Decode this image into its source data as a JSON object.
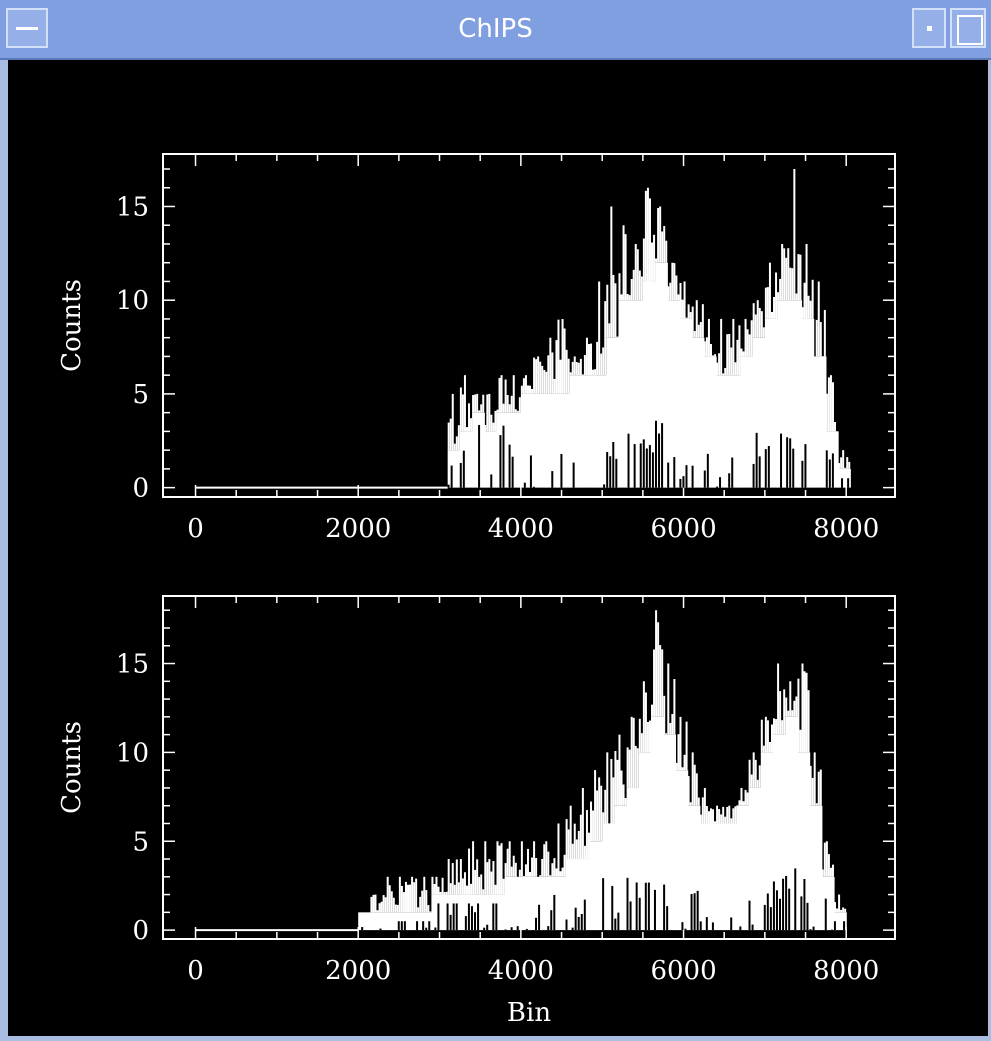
{
  "window": {
    "title": "ChIPS",
    "menu_icon": "window-menu-icon",
    "minimize_icon": "minimize-icon",
    "maximize_icon": "maximize-icon"
  },
  "colors": {
    "background": "#000000",
    "foreground": "#ffffff",
    "titlebar": "#7f9fe0"
  },
  "chart_data": [
    {
      "type": "bar",
      "xlabel": "",
      "ylabel": "Counts",
      "xlim": [
        -400,
        8600
      ],
      "ylim": [
        -0.5,
        17.8
      ],
      "xticks": [
        "0",
        "2000",
        "4000",
        "6000",
        "8000"
      ],
      "yticks": [
        "0",
        "5",
        "10",
        "15"
      ],
      "grid": false,
      "zero_range": [
        0,
        3100
      ],
      "x": [
        3100,
        3250,
        3400,
        3550,
        3700,
        3850,
        4000,
        4150,
        4300,
        4450,
        4600,
        4750,
        4900,
        5050,
        5200,
        5350,
        5500,
        5650,
        5800,
        5950,
        6100,
        6250,
        6400,
        6550,
        6700,
        6850,
        7000,
        7150,
        7300,
        7450,
        7600,
        7750,
        7900,
        8050
      ],
      "min": [
        0,
        1,
        2,
        0,
        2,
        1,
        0,
        0,
        0,
        0,
        1,
        0,
        0,
        1,
        2,
        1,
        1,
        2,
        1,
        0,
        1,
        0,
        0,
        0,
        0,
        1,
        1,
        2,
        1,
        1,
        0,
        0,
        0,
        0
      ],
      "mid": [
        2,
        3,
        4,
        3,
        4,
        4,
        5,
        5,
        5,
        5,
        6,
        6,
        6,
        8,
        10,
        10,
        11,
        12,
        10,
        9,
        8,
        7,
        6,
        6,
        7,
        8,
        9,
        10,
        10,
        9,
        7,
        3,
        1,
        0
      ],
      "max": [
        5,
        6,
        5,
        5,
        6,
        6,
        6,
        7,
        8,
        9,
        7,
        8,
        11,
        15,
        14,
        13,
        16,
        15,
        12,
        11,
        10,
        9,
        9,
        9,
        9,
        10,
        12,
        13,
        17,
        13,
        11,
        6,
        2,
        0
      ]
    },
    {
      "type": "bar",
      "xlabel": "Bin",
      "ylabel": "Counts",
      "xlim": [
        -400,
        8600
      ],
      "ylim": [
        -0.5,
        18.8
      ],
      "xticks": [
        "0",
        "2000",
        "4000",
        "6000",
        "8000"
      ],
      "yticks": [
        "0",
        "5",
        "10",
        "15"
      ],
      "grid": false,
      "zero_range": [
        0,
        2000
      ],
      "x": [
        2000,
        2150,
        2300,
        2450,
        2600,
        2750,
        2900,
        3050,
        3200,
        3350,
        3500,
        3650,
        3800,
        3950,
        4100,
        4250,
        4400,
        4550,
        4700,
        4850,
        5000,
        5150,
        5300,
        5450,
        5600,
        5750,
        5900,
        6050,
        6200,
        6350,
        6500,
        6650,
        6800,
        6950,
        7100,
        7250,
        7400,
        7550,
        7700,
        7850
      ],
      "min": [
        0,
        0,
        0,
        0,
        0,
        0,
        0,
        0,
        0,
        0,
        0,
        0,
        0,
        0,
        0,
        0,
        0,
        0,
        0,
        0,
        1,
        0,
        1,
        1,
        2,
        1,
        0,
        1,
        0,
        0,
        0,
        0,
        0,
        1,
        1,
        2,
        1,
        0,
        0,
        0
      ],
      "mid": [
        1,
        1,
        1,
        1,
        1,
        1,
        2,
        2,
        2,
        2,
        2,
        2,
        3,
        3,
        3,
        3,
        3,
        4,
        4,
        5,
        6,
        7,
        8,
        10,
        12,
        11,
        9,
        7,
        6,
        6,
        6,
        7,
        8,
        10,
        11,
        12,
        10,
        7,
        3,
        1
      ],
      "max": [
        1,
        2,
        3,
        3,
        3,
        3,
        3,
        4,
        4,
        5,
        5,
        5,
        5,
        5,
        5,
        5,
        6,
        7,
        8,
        9,
        10,
        11,
        12,
        14,
        18,
        15,
        12,
        10,
        8,
        7,
        7,
        8,
        10,
        12,
        15,
        14,
        15,
        10,
        5,
        2
      ]
    }
  ]
}
